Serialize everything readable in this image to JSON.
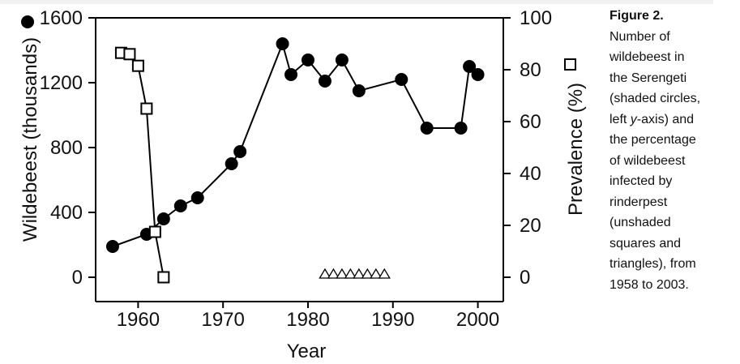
{
  "chart_data": {
    "type": "line",
    "xlabel": "Year",
    "ylabel_left": "Wildebeest (thousands)",
    "ylabel_right": "Prevalence (%)",
    "xlim": [
      1955,
      2003
    ],
    "ylim_left": [
      0,
      1600
    ],
    "ylim_right": [
      0,
      100
    ],
    "x_ticks": [
      1960,
      1970,
      1980,
      1990,
      2000
    ],
    "y_ticks_left": [
      0,
      400,
      800,
      1200,
      1600
    ],
    "y_ticks_right": [
      0,
      20,
      40,
      60,
      80,
      100
    ],
    "series": [
      {
        "axis": "left",
        "marker": "filled-circle",
        "x": [
          1957,
          1961,
          1963,
          1965,
          1967,
          1971,
          1972,
          1977,
          1978,
          1980,
          1982,
          1984,
          1986,
          1991,
          1994,
          1998,
          1999,
          2000
        ],
        "values": [
          190,
          265,
          360,
          440,
          490,
          700,
          775,
          1440,
          1250,
          1340,
          1210,
          1340,
          1150,
          1220,
          920,
          920,
          1300,
          1250
        ]
      },
      {
        "axis": "right",
        "marker": "open-square",
        "x": [
          1958,
          1959,
          1960,
          1961,
          1962,
          1963
        ],
        "values": [
          86.5,
          86,
          81.5,
          65,
          17.5,
          0
        ]
      },
      {
        "axis": "right",
        "marker": "open-triangle",
        "x": [
          1982,
          1983,
          1984,
          1985,
          1986,
          1987,
          1988,
          1989
        ],
        "values": [
          0,
          0,
          0,
          0,
          0,
          0,
          0,
          0
        ]
      }
    ],
    "grid": false
  },
  "caption": {
    "title": "Figure 2.",
    "lines": [
      "Number of",
      "wildebeest in",
      "the Serengeti",
      "(shaded circles,",
      "left y-axis) and",
      "the percentage",
      "of wildebeest",
      "infected by",
      "rinderpest",
      "(unshaded",
      "squares and",
      "triangles), from",
      "1958 to 2003."
    ]
  }
}
